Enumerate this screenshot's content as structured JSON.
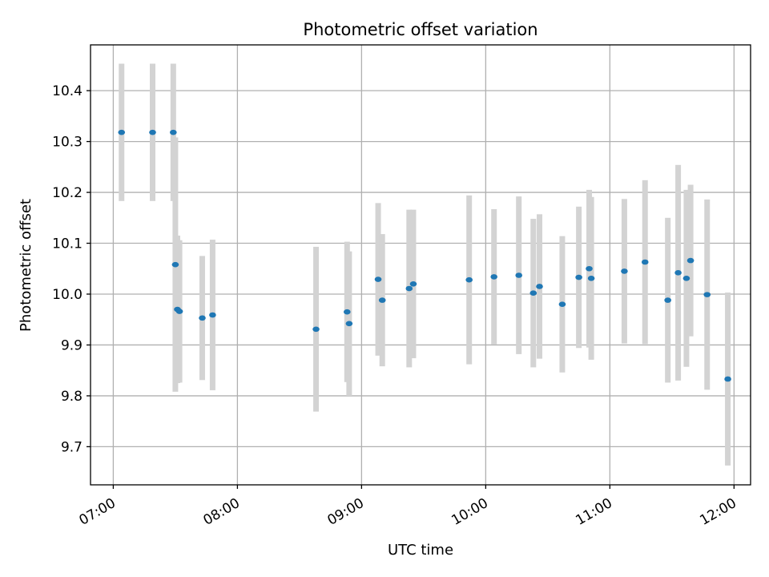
{
  "chart_data": {
    "type": "scatter",
    "title": "Photometric offset variation",
    "xlabel": "UTC time",
    "ylabel": "Photometric offset",
    "x_ticks": [
      "07:00",
      "08:00",
      "09:00",
      "10:00",
      "11:00",
      "12:00"
    ],
    "y_ticks": [
      "9.7",
      "9.8",
      "9.9",
      "10.0",
      "10.1",
      "10.2",
      "10.3",
      "10.4"
    ],
    "xlim": [
      "06:49",
      "12:08"
    ],
    "ylim": [
      9.625,
      10.49
    ],
    "grid": true,
    "colors": {
      "point": "#1f77b4",
      "errorbar": "#d3d3d3",
      "grid": "#b0b0b0"
    },
    "series": [
      {
        "points": [
          {
            "x": "07:04",
            "y": 10.318,
            "yerr": 0.135
          },
          {
            "x": "07:19",
            "y": 10.318,
            "yerr": 0.135
          },
          {
            "x": "07:29",
            "y": 10.318,
            "yerr": 0.135
          },
          {
            "x": "07:30",
            "y": 10.058,
            "yerr": 0.25
          },
          {
            "x": "07:31",
            "y": 9.97,
            "yerr": 0.145
          },
          {
            "x": "07:32",
            "y": 9.966,
            "yerr": 0.14
          },
          {
            "x": "07:43",
            "y": 9.953,
            "yerr": 0.122
          },
          {
            "x": "07:48",
            "y": 9.959,
            "yerr": 0.148
          },
          {
            "x": "08:38",
            "y": 9.931,
            "yerr": 0.162
          },
          {
            "x": "08:53",
            "y": 9.965,
            "yerr": 0.138
          },
          {
            "x": "08:54",
            "y": 9.942,
            "yerr": 0.142
          },
          {
            "x": "09:08",
            "y": 10.029,
            "yerr": 0.15
          },
          {
            "x": "09:10",
            "y": 9.988,
            "yerr": 0.13
          },
          {
            "x": "09:23",
            "y": 10.011,
            "yerr": 0.155
          },
          {
            "x": "09:25",
            "y": 10.02,
            "yerr": 0.146
          },
          {
            "x": "09:52",
            "y": 10.028,
            "yerr": 0.166
          },
          {
            "x": "10:04",
            "y": 10.034,
            "yerr": 0.133
          },
          {
            "x": "10:16",
            "y": 10.037,
            "yerr": 0.155
          },
          {
            "x": "10:23",
            "y": 10.002,
            "yerr": 0.146
          },
          {
            "x": "10:26",
            "y": 10.015,
            "yerr": 0.142
          },
          {
            "x": "10:37",
            "y": 9.98,
            "yerr": 0.134
          },
          {
            "x": "10:45",
            "y": 10.033,
            "yerr": 0.139
          },
          {
            "x": "10:50",
            "y": 10.05,
            "yerr": 0.155
          },
          {
            "x": "10:51",
            "y": 10.031,
            "yerr": 0.16
          },
          {
            "x": "11:07",
            "y": 10.045,
            "yerr": 0.142
          },
          {
            "x": "11:17",
            "y": 10.063,
            "yerr": 0.161
          },
          {
            "x": "11:28",
            "y": 9.988,
            "yerr": 0.162
          },
          {
            "x": "11:33",
            "y": 10.042,
            "yerr": 0.212
          },
          {
            "x": "11:37",
            "y": 10.031,
            "yerr": 0.174
          },
          {
            "x": "11:39",
            "y": 10.066,
            "yerr": 0.149
          },
          {
            "x": "11:47",
            "y": 9.999,
            "yerr": 0.187
          },
          {
            "x": "11:57",
            "y": 9.833,
            "yerr": 0.17
          }
        ]
      }
    ]
  }
}
